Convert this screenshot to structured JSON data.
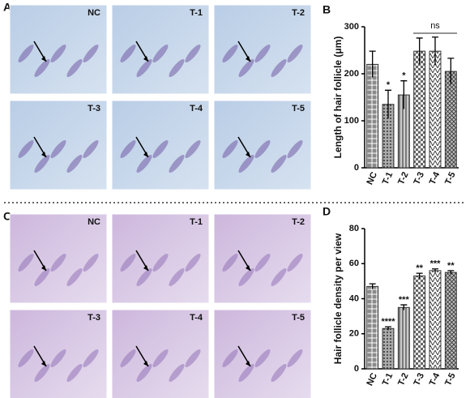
{
  "image_panels": [
    {
      "panel_label": "A",
      "image_labels": [
        "NC",
        "T-1",
        "T-2",
        "T-3",
        "T-4",
        "T-5"
      ]
    },
    {
      "panel_label": "C",
      "image_labels": [
        "NC",
        "T-1",
        "T-2",
        "T-3",
        "T-4",
        "T-5"
      ]
    }
  ],
  "chart_data": [
    {
      "type": "bar",
      "panel_label": "B",
      "y_label": "Length of hair follicle (μm)",
      "categories": [
        "NC",
        "T-1",
        "T-2",
        "T-3",
        "T-4",
        "T-5"
      ],
      "values": [
        220,
        135,
        155,
        248,
        248,
        205
      ],
      "errors": [
        28,
        30,
        30,
        28,
        30,
        28
      ],
      "annotations": [
        null,
        "*",
        "*",
        null,
        null,
        null
      ],
      "bracket": {
        "label": "ns",
        "categories": [
          "T-3",
          "T-5"
        ]
      },
      "color": "#8a8a8a",
      "ylim": [
        0,
        300
      ],
      "yticks": [
        0,
        100,
        200,
        300
      ]
    },
    {
      "type": "bar",
      "panel_label": "D",
      "y_label": "Hair follicle density per view",
      "categories": [
        "NC",
        "T-1",
        "T-2",
        "T-3",
        "T-4",
        "T-5"
      ],
      "values": [
        47,
        23,
        35,
        53,
        56,
        55
      ],
      "errors": [
        1.5,
        1,
        1.5,
        1.5,
        1,
        1
      ],
      "annotations": [
        null,
        "****",
        "***",
        "**",
        "***",
        "**"
      ],
      "color": "#8a8a8a",
      "ylim": [
        0,
        80
      ],
      "yticks": [
        0,
        20,
        40,
        60,
        80
      ]
    }
  ]
}
